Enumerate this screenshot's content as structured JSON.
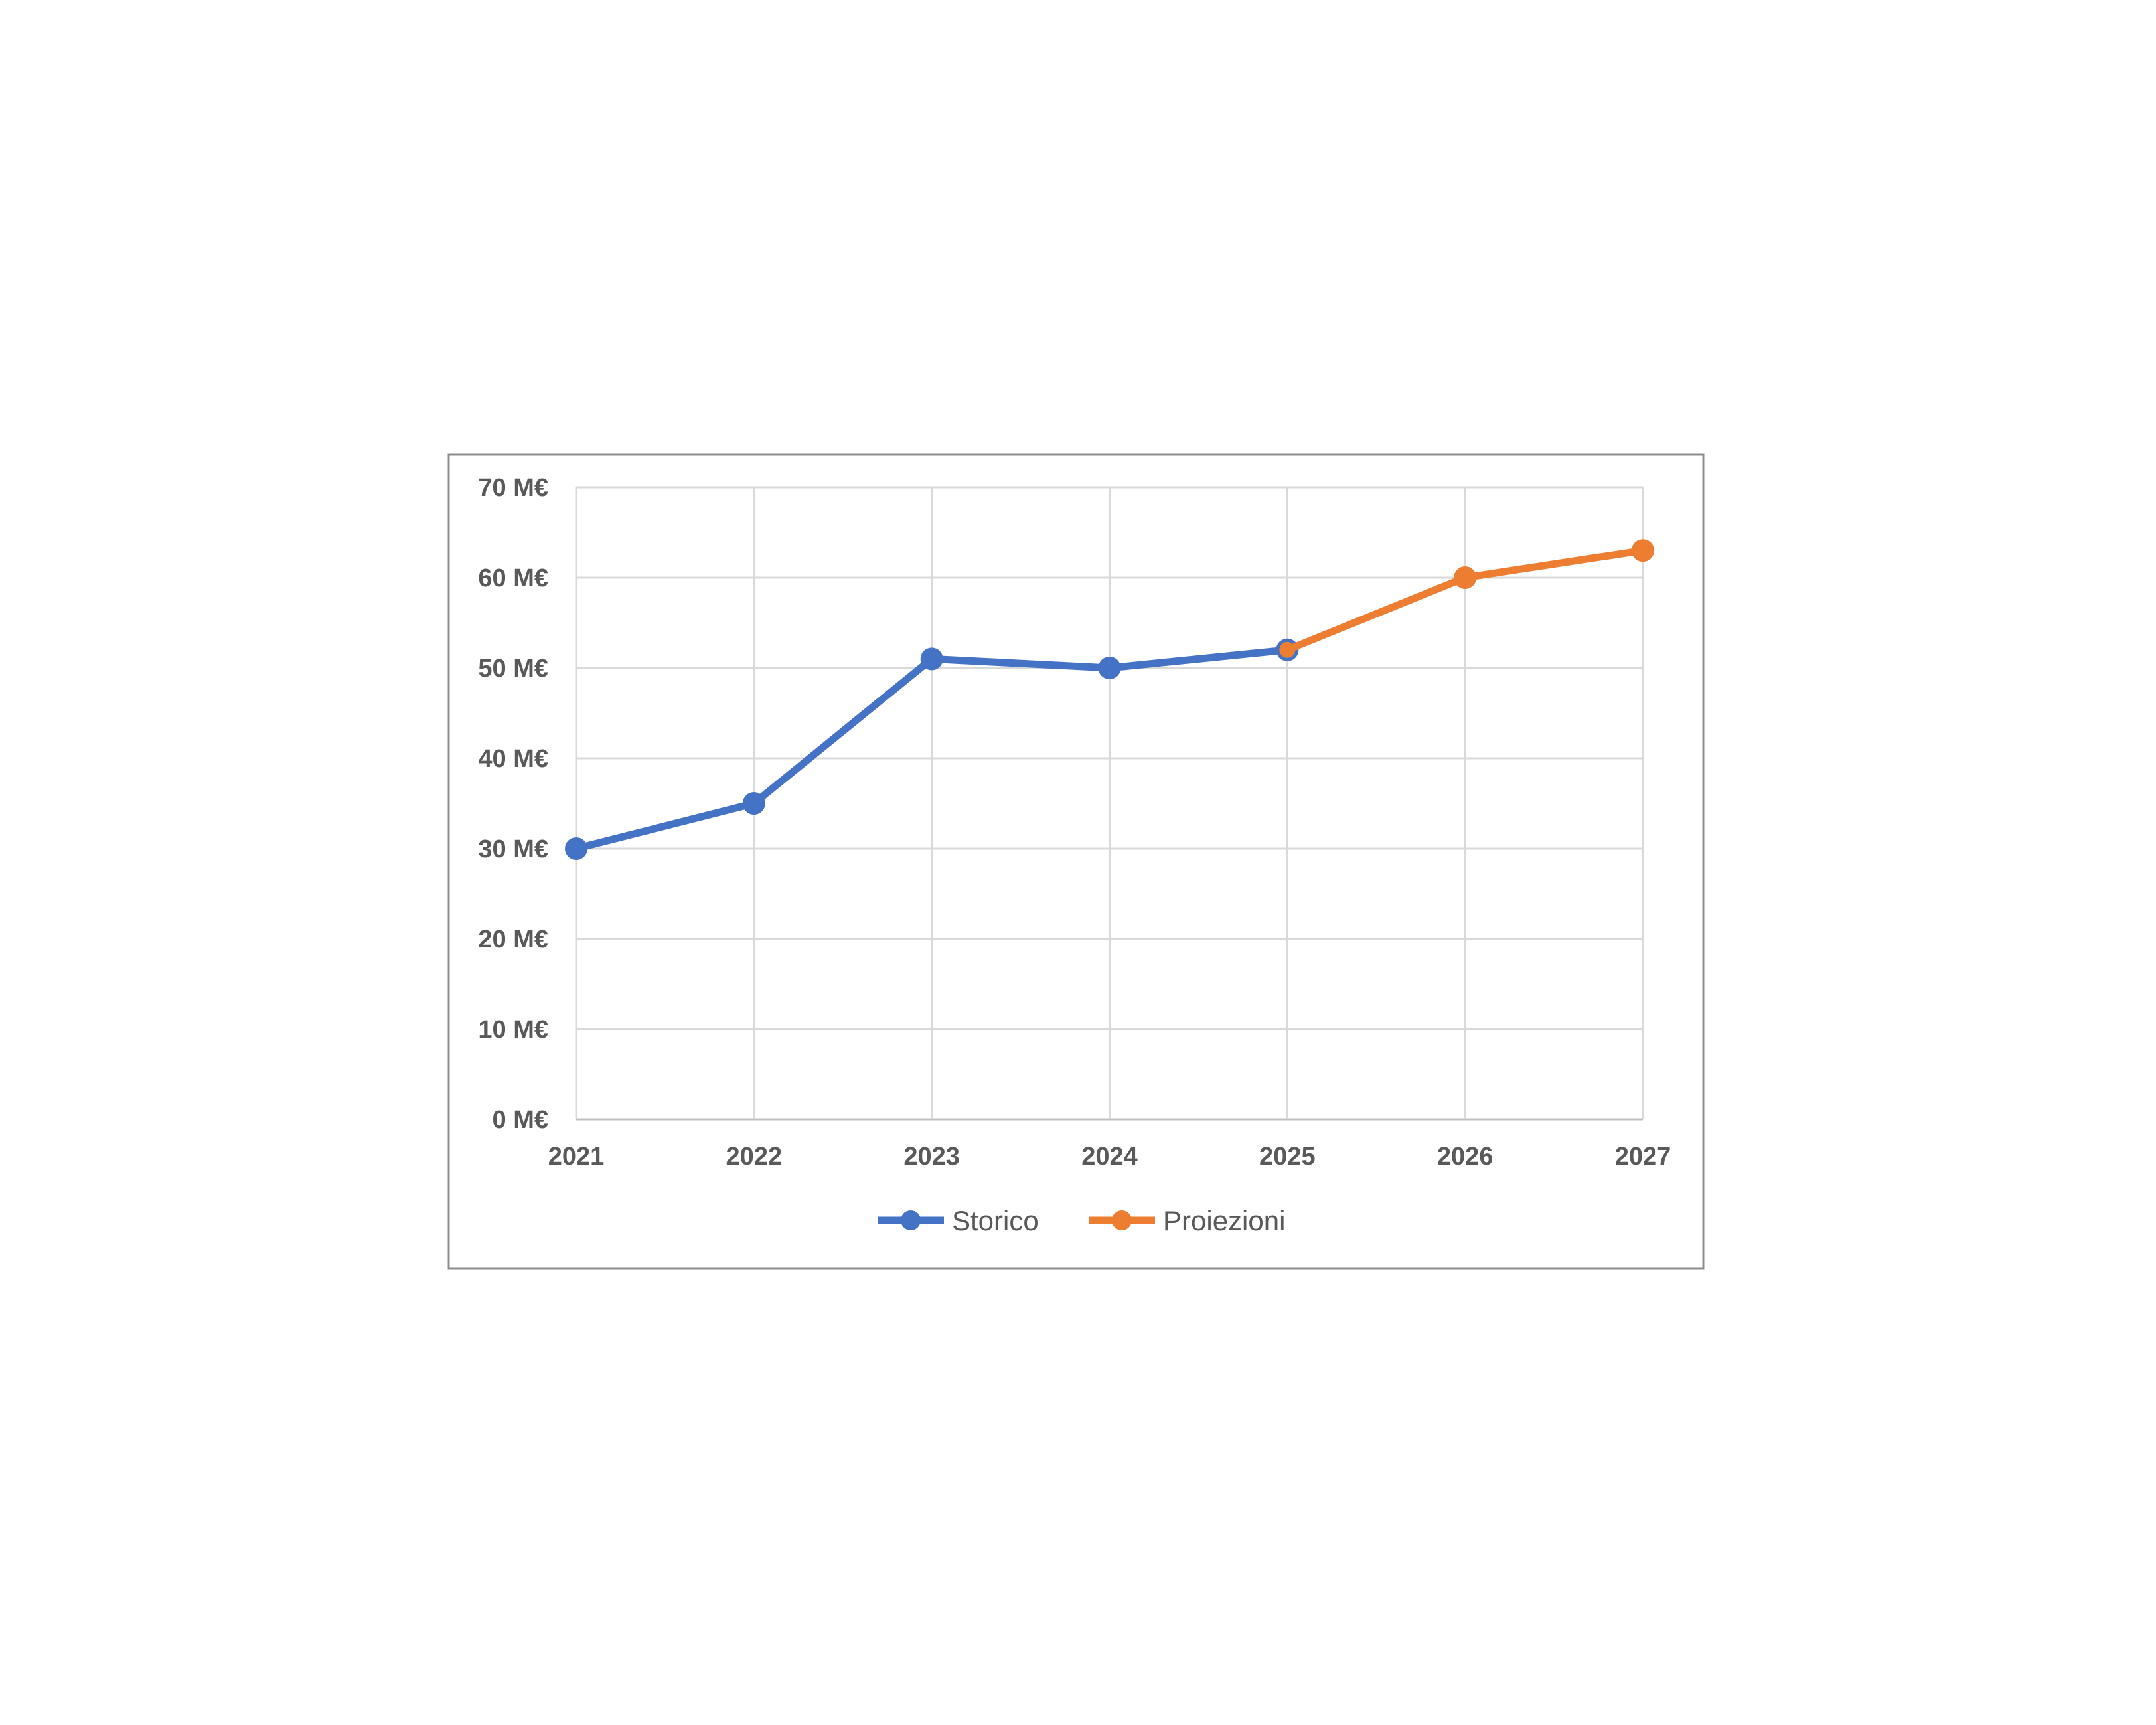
{
  "chart_data": {
    "type": "line",
    "title": "",
    "xlabel": "",
    "ylabel": "",
    "categories": [
      "2021",
      "2022",
      "2023",
      "2024",
      "2025",
      "2026",
      "2027"
    ],
    "ylim": [
      0,
      70
    ],
    "yticks": [
      0,
      10,
      20,
      30,
      40,
      50,
      60,
      70
    ],
    "ytick_labels": [
      "0 M€",
      "10 M€",
      "20 M€",
      "30 M€",
      "40 M€",
      "50 M€",
      "60 M€",
      "70 M€"
    ],
    "grid": true,
    "legend_position": "bottom",
    "series": [
      {
        "name": "Storico",
        "color": "#4472C4",
        "values": [
          30,
          35,
          51,
          50,
          52,
          null,
          null
        ]
      },
      {
        "name": "Proiezioni",
        "color": "#ED7D31",
        "values": [
          null,
          null,
          null,
          null,
          52,
          60,
          63
        ]
      }
    ]
  }
}
